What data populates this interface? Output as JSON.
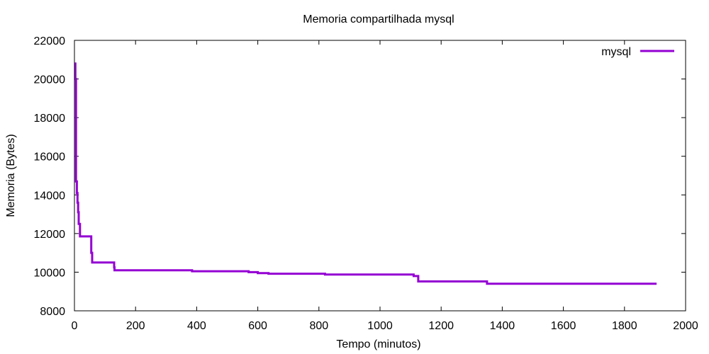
{
  "chart_data": {
    "type": "line",
    "title": "Memoria compartilhada mysql",
    "xlabel": "Tempo (minutos)",
    "ylabel": "Memoria (Bytes)",
    "xlim": [
      0,
      2000
    ],
    "ylim": [
      8000,
      22000
    ],
    "x_ticks": [
      "0",
      "200",
      "400",
      "600",
      "800",
      "1000",
      "1200",
      "1400",
      "1600",
      "1800",
      "2000"
    ],
    "y_ticks": [
      "8000",
      "10000",
      "12000",
      "14000",
      "16000",
      "18000",
      "20000",
      "22000"
    ],
    "grid": false,
    "legend_position": "top-right",
    "series": [
      {
        "name": "mysql",
        "color": "#9400d3",
        "points": [
          [
            0,
            20800
          ],
          [
            3,
            20800
          ],
          [
            3,
            20000
          ],
          [
            5,
            20000
          ],
          [
            5,
            14700
          ],
          [
            8,
            14700
          ],
          [
            8,
            14100
          ],
          [
            10,
            14100
          ],
          [
            10,
            13600
          ],
          [
            12,
            13600
          ],
          [
            12,
            13100
          ],
          [
            14,
            13100
          ],
          [
            14,
            12500
          ],
          [
            18,
            12500
          ],
          [
            18,
            11850
          ],
          [
            55,
            11850
          ],
          [
            55,
            11000
          ],
          [
            58,
            11000
          ],
          [
            58,
            10500
          ],
          [
            130,
            10500
          ],
          [
            130,
            10250
          ],
          [
            131,
            10250
          ],
          [
            131,
            10100
          ],
          [
            385,
            10100
          ],
          [
            385,
            10050
          ],
          [
            570,
            10050
          ],
          [
            570,
            10000
          ],
          [
            600,
            10000
          ],
          [
            600,
            9950
          ],
          [
            635,
            9950
          ],
          [
            635,
            9920
          ],
          [
            820,
            9920
          ],
          [
            820,
            9880
          ],
          [
            1110,
            9880
          ],
          [
            1110,
            9800
          ],
          [
            1125,
            9800
          ],
          [
            1125,
            9520
          ],
          [
            1350,
            9520
          ],
          [
            1350,
            9400
          ],
          [
            1905,
            9400
          ]
        ]
      }
    ]
  }
}
